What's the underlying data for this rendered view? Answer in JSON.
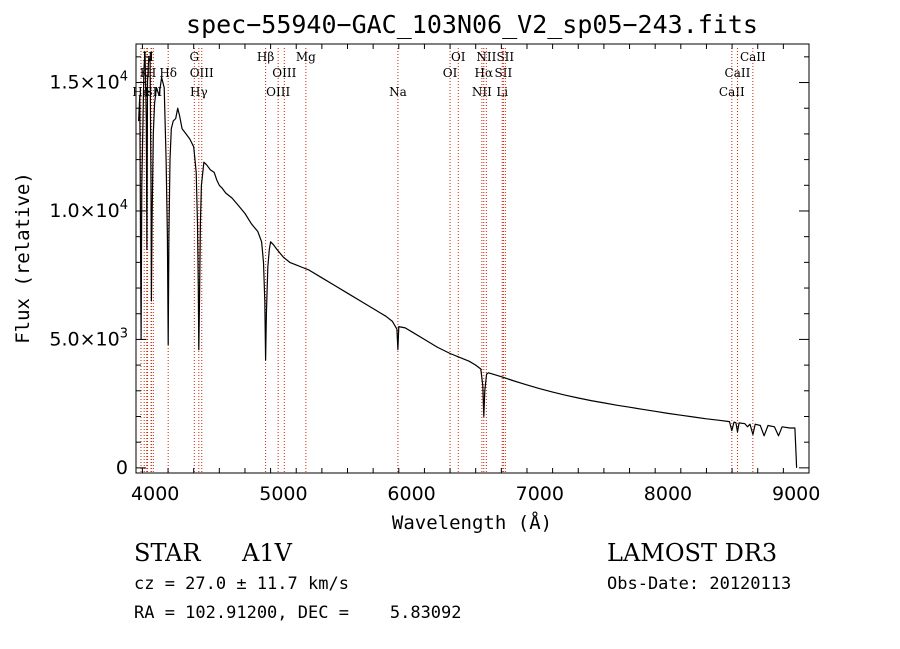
{
  "chart_data": {
    "type": "line",
    "title": "spec−55940−GAC_103N06_V2_sp05−243.fits",
    "xlabel": "Wavelength (Å)",
    "ylabel": "Flux (relative)",
    "xlim": [
      3850,
      9100
    ],
    "ylim": [
      -200,
      16500
    ],
    "x_ticks": [
      4000,
      5000,
      6000,
      7000,
      8000,
      9000
    ],
    "y_ticks": [
      {
        "value": 0,
        "mantissa": "0",
        "exponent": ""
      },
      {
        "value": 5000,
        "mantissa": "5.0×10",
        "exponent": "3"
      },
      {
        "value": 10000,
        "mantissa": "1.0×10",
        "exponent": "4"
      },
      {
        "value": 15000,
        "mantissa": "1.5×10",
        "exponent": "4"
      }
    ],
    "series": [
      {
        "name": "spectrum",
        "color": "#000000",
        "points": [
          [
            3870,
            13500
          ],
          [
            3880,
            14500
          ],
          [
            3885,
            9000
          ],
          [
            3890,
            5000
          ],
          [
            3895,
            11000
          ],
          [
            3905,
            13800
          ],
          [
            3912,
            15500
          ],
          [
            3920,
            16200
          ],
          [
            3930,
            13500
          ],
          [
            3935,
            8500
          ],
          [
            3940,
            15000
          ],
          [
            3950,
            16000
          ],
          [
            3960,
            15800
          ],
          [
            3967,
            11000
          ],
          [
            3970,
            6500
          ],
          [
            3975,
            9500
          ],
          [
            3985,
            13000
          ],
          [
            3995,
            14200
          ],
          [
            4010,
            14800
          ],
          [
            4030,
            14500
          ],
          [
            4050,
            15200
          ],
          [
            4070,
            14800
          ],
          [
            4085,
            12000
          ],
          [
            4095,
            9000
          ],
          [
            4101,
            4800
          ],
          [
            4107,
            9000
          ],
          [
            4115,
            12000
          ],
          [
            4125,
            13200
          ],
          [
            4140,
            13500
          ],
          [
            4160,
            13600
          ],
          [
            4175,
            14000
          ],
          [
            4190,
            13700
          ],
          [
            4210,
            13200
          ],
          [
            4240,
            13000
          ],
          [
            4270,
            12800
          ],
          [
            4300,
            12500
          ],
          [
            4320,
            11500
          ],
          [
            4330,
            9500
          ],
          [
            4336,
            7000
          ],
          [
            4340,
            4600
          ],
          [
            4345,
            6500
          ],
          [
            4352,
            9500
          ],
          [
            4360,
            11000
          ],
          [
            4380,
            11900
          ],
          [
            4400,
            11800
          ],
          [
            4430,
            11600
          ],
          [
            4460,
            11500
          ],
          [
            4480,
            11200
          ],
          [
            4500,
            11000
          ],
          [
            4520,
            10900
          ],
          [
            4550,
            10700
          ],
          [
            4600,
            10500
          ],
          [
            4650,
            10200
          ],
          [
            4700,
            9900
          ],
          [
            4750,
            9500
          ],
          [
            4800,
            9200
          ],
          [
            4830,
            8800
          ],
          [
            4845,
            8000
          ],
          [
            4855,
            6500
          ],
          [
            4861,
            4200
          ],
          [
            4867,
            6000
          ],
          [
            4878,
            7800
          ],
          [
            4890,
            8500
          ],
          [
            4900,
            8800
          ],
          [
            4920,
            8700
          ],
          [
            4950,
            8500
          ],
          [
            5000,
            8200
          ],
          [
            5050,
            8000
          ],
          [
            5100,
            7900
          ],
          [
            5150,
            7800
          ],
          [
            5200,
            7700
          ],
          [
            5300,
            7400
          ],
          [
            5400,
            7100
          ],
          [
            5500,
            6800
          ],
          [
            5600,
            6500
          ],
          [
            5700,
            6200
          ],
          [
            5800,
            5900
          ],
          [
            5850,
            5700
          ],
          [
            5885,
            5400
          ],
          [
            5893,
            4600
          ],
          [
            5900,
            5500
          ],
          [
            5950,
            5450
          ],
          [
            6000,
            5300
          ],
          [
            6100,
            5000
          ],
          [
            6200,
            4700
          ],
          [
            6300,
            4450
          ],
          [
            6400,
            4250
          ],
          [
            6450,
            4150
          ],
          [
            6500,
            4000
          ],
          [
            6540,
            3850
          ],
          [
            6555,
            3200
          ],
          [
            6563,
            2000
          ],
          [
            6571,
            3000
          ],
          [
            6585,
            3650
          ],
          [
            6600,
            3700
          ],
          [
            6700,
            3550
          ],
          [
            6800,
            3380
          ],
          [
            6900,
            3230
          ],
          [
            7000,
            3080
          ],
          [
            7100,
            2950
          ],
          [
            7200,
            2830
          ],
          [
            7300,
            2720
          ],
          [
            7400,
            2620
          ],
          [
            7500,
            2530
          ],
          [
            7600,
            2440
          ],
          [
            7700,
            2360
          ],
          [
            7800,
            2280
          ],
          [
            7900,
            2200
          ],
          [
            8000,
            2120
          ],
          [
            8100,
            2050
          ],
          [
            8200,
            1980
          ],
          [
            8300,
            1910
          ],
          [
            8400,
            1850
          ],
          [
            8480,
            1800
          ],
          [
            8498,
            1450
          ],
          [
            8515,
            1780
          ],
          [
            8530,
            1760
          ],
          [
            8542,
            1400
          ],
          [
            8555,
            1750
          ],
          [
            8600,
            1720
          ],
          [
            8620,
            1600
          ],
          [
            8640,
            1700
          ],
          [
            8662,
            1300
          ],
          [
            8680,
            1700
          ],
          [
            8720,
            1650
          ],
          [
            8750,
            1250
          ],
          [
            8780,
            1650
          ],
          [
            8830,
            1600
          ],
          [
            8862,
            1250
          ],
          [
            8890,
            1600
          ],
          [
            8950,
            1550
          ],
          [
            8990,
            1550
          ],
          [
            9000,
            400
          ],
          [
            9003,
            0
          ]
        ]
      }
    ],
    "spectral_lines": [
      {
        "x": 3889,
        "label": "He",
        "row": 3
      },
      {
        "x": 3914,
        "label": "K",
        "row": 2
      },
      {
        "x": 3934,
        "label": "I",
        "row": 3
      },
      {
        "x": 3940,
        "label": "H",
        "row": 1
      },
      {
        "x": 3968,
        "label": "H",
        "row": 2
      },
      {
        "x": 3970,
        "label": "I",
        "row": 1
      },
      {
        "x": 3985,
        "label": "SII",
        "row": 3
      },
      {
        "x": 4101,
        "label": "Hδ",
        "row": 2
      },
      {
        "x": 4305,
        "label": "G",
        "row": 1
      },
      {
        "x": 4340,
        "label": "Hγ",
        "row": 3
      },
      {
        "x": 4363,
        "label": "OIII",
        "row": 2
      },
      {
        "x": 4861,
        "label": "Hβ",
        "row": 1
      },
      {
        "x": 4959,
        "label": "OIII",
        "row": 3
      },
      {
        "x": 5007,
        "label": "OIII",
        "row": 2
      },
      {
        "x": 5175,
        "label": "Mg",
        "row": 1
      },
      {
        "x": 5893,
        "label": "Na",
        "row": 3
      },
      {
        "x": 6300,
        "label": "OI",
        "row": 2
      },
      {
        "x": 6364,
        "label": "OI",
        "row": 1
      },
      {
        "x": 6548,
        "label": "NII",
        "row": 3
      },
      {
        "x": 6563,
        "label": "Hα",
        "row": 2
      },
      {
        "x": 6583,
        "label": "NII",
        "row": 1
      },
      {
        "x": 6707,
        "label": "Li",
        "row": 3
      },
      {
        "x": 6716,
        "label": "SII",
        "row": 2
      },
      {
        "x": 6731,
        "label": "SII",
        "row": 1
      },
      {
        "x": 8498,
        "label": "CaII",
        "row": 3
      },
      {
        "x": 8542,
        "label": "CaII",
        "row": 2
      },
      {
        "x": 8662,
        "label": "CaII",
        "row": 1
      }
    ],
    "line_color": "#cc2200"
  },
  "info": {
    "object_class": "STAR",
    "subclass": "A1V",
    "survey": "LAMOST DR3",
    "redshift": "cz = 27.0 ± 11.7 km/s",
    "obs_date": "Obs-Date: 20120113",
    "coordinates": "RA = 102.91200, DEC =    5.83092"
  }
}
